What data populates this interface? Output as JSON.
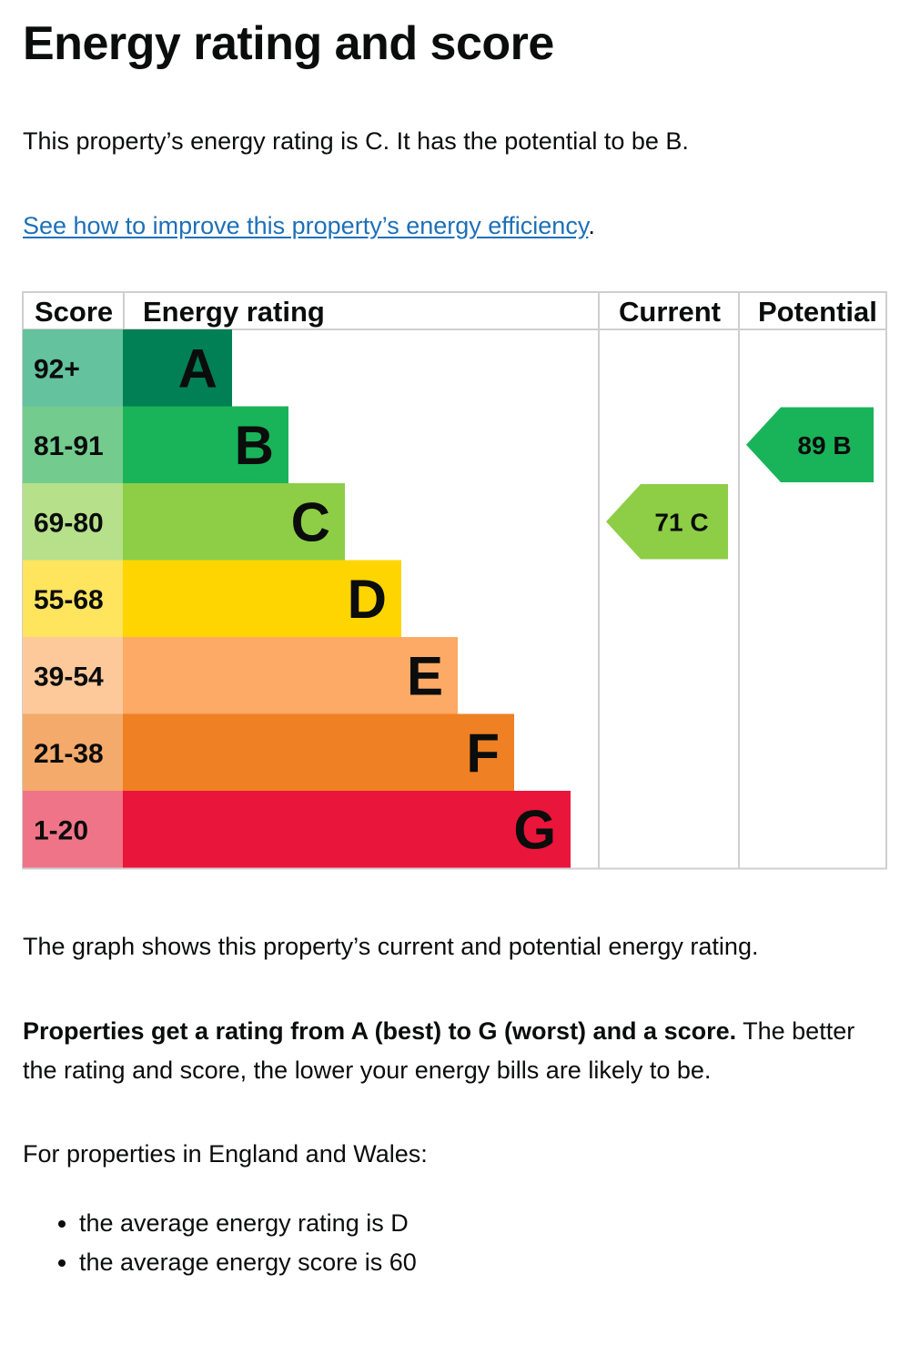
{
  "title": "Energy rating and score",
  "intro": "This property’s energy rating is C. It has the potential to be B.",
  "improve_link": "See how to improve this property’s energy efficiency",
  "improve_suffix": ".",
  "graph_caption": "The graph shows this property’s current and potential energy rating.",
  "ratings_explainer_bold": "Properties get a rating from A (best) to G (worst) and a score.",
  "ratings_explainer_rest": " The better the rating and score, the lower your energy bills are likely to be.",
  "average_intro": "For properties in England and Wales:",
  "averages": [
    "the average energy rating is D",
    "the average energy score is 60"
  ],
  "chart_data": {
    "type": "bar",
    "headers": [
      "Score",
      "Energy rating",
      "Current",
      "Potential"
    ],
    "bands": [
      {
        "letter": "A",
        "score_range": "92+",
        "color": "#008054",
        "score_color": "#64c29e"
      },
      {
        "letter": "B",
        "score_range": "81-91",
        "color": "#19b459",
        "score_color": "#73cc8e"
      },
      {
        "letter": "C",
        "score_range": "69-80",
        "color": "#8dce46",
        "score_color": "#b6e08a"
      },
      {
        "letter": "D",
        "score_range": "55-68",
        "color": "#ffd500",
        "score_color": "#ffe45e"
      },
      {
        "letter": "E",
        "score_range": "39-54",
        "color": "#fcaa65",
        "score_color": "#fdc99b"
      },
      {
        "letter": "F",
        "score_range": "21-38",
        "color": "#ef8023",
        "score_color": "#f4aa6b"
      },
      {
        "letter": "G",
        "score_range": "1-20",
        "color": "#e9153b",
        "score_color": "#f07488"
      }
    ],
    "current": {
      "score": 71,
      "rating": "C",
      "label": "71 C",
      "color": "#8dce46"
    },
    "potential": {
      "score": 89,
      "rating": "B",
      "label": "89 B",
      "color": "#19b459"
    }
  }
}
